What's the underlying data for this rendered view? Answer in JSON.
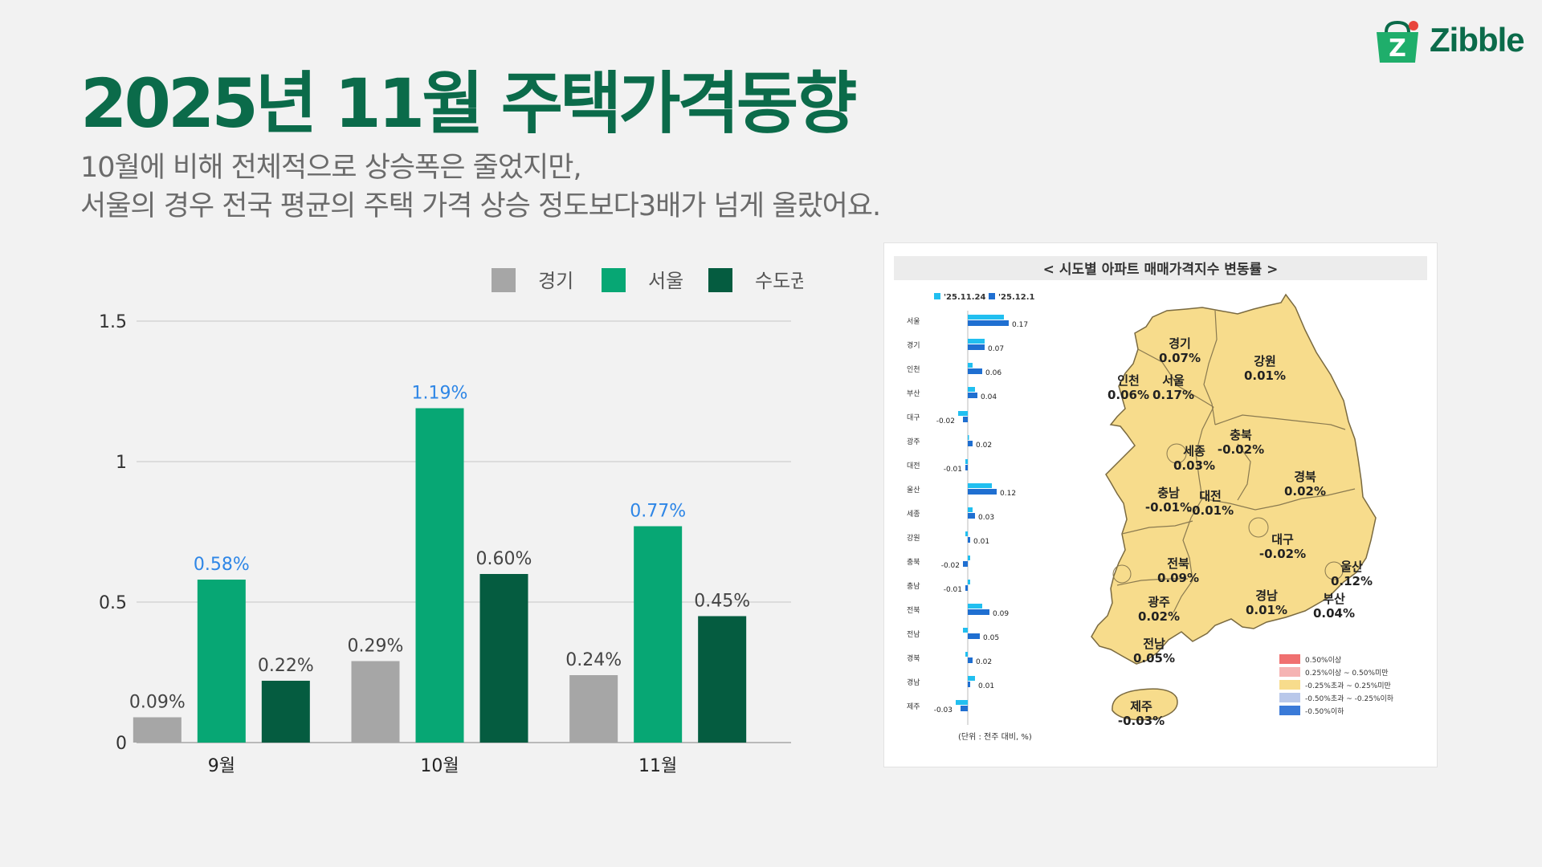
{
  "title": "2025년 11월 주택가격동향",
  "subtitle": {
    "line1": "10월에 비해 전체적으로 상승폭은 줄었지만,",
    "line2": "서울의 경우 전국 평균의 주택 가격 상승 정도보다3배가 넘게 올랐어요."
  },
  "brand": {
    "name": "Zibble",
    "logo_letter": "Z"
  },
  "colors": {
    "accent": "#0b6b4a",
    "gyeonggi": "#a6a6a6",
    "seoul": "#07a774",
    "capital": "#055c40",
    "highlight_label": "#2e86e6",
    "map_fill": "#f7dc8c",
    "bar_prev": "#21bff0",
    "bar_curr": "#1f6fd1"
  },
  "chart_data": {
    "type": "bar",
    "title": "",
    "xlabel": "",
    "ylabel": "",
    "ylim": [
      0,
      1.5
    ],
    "yticks": [
      "0",
      "0.5",
      "1",
      "1.5"
    ],
    "ytick_values": [
      0,
      0.5,
      1,
      1.5
    ],
    "categories": [
      "9월",
      "10월",
      "11월"
    ],
    "legend_position": "top",
    "series": [
      {
        "name": "경기",
        "values": [
          0.09,
          0.29,
          0.24
        ],
        "labels": [
          "0.09%",
          "0.29%",
          "0.24%"
        ],
        "color": "#a6a6a6"
      },
      {
        "name": "서울",
        "values": [
          0.58,
          1.19,
          0.77
        ],
        "labels": [
          "0.58%",
          "1.19%",
          "0.77%"
        ],
        "color": "#07a774"
      },
      {
        "name": "수도권",
        "values": [
          0.22,
          0.6,
          0.45
        ],
        "labels": [
          "0.22%",
          "0.60%",
          "0.45%"
        ],
        "color": "#055c40"
      }
    ]
  },
  "map_panel": {
    "title": "< 시도별 아파트 매매가격지수 변동률 >",
    "legend": [
      "'25.11.24",
      "'25.12.1"
    ],
    "unit": "(단위 : 전주 대비, %)",
    "bar_chart": {
      "type": "bar",
      "orientation": "horizontal",
      "rows": [
        {
          "region": "서울",
          "prev": 0.15,
          "curr": 0.17,
          "label": "0.17"
        },
        {
          "region": "경기",
          "prev": 0.07,
          "curr": 0.07,
          "label": "0.07"
        },
        {
          "region": "인천",
          "prev": 0.02,
          "curr": 0.06,
          "label": "0.06"
        },
        {
          "region": "부산",
          "prev": 0.03,
          "curr": 0.04,
          "label": "0.04"
        },
        {
          "region": "대구",
          "prev": -0.04,
          "curr": -0.02,
          "label": "-0.02"
        },
        {
          "region": "광주",
          "prev": 0.0,
          "curr": 0.02,
          "label": "0.02"
        },
        {
          "region": "대전",
          "prev": -0.01,
          "curr": -0.01,
          "label": "-0.01"
        },
        {
          "region": "울산",
          "prev": 0.1,
          "curr": 0.12,
          "label": "0.12"
        },
        {
          "region": "세종",
          "prev": 0.02,
          "curr": 0.03,
          "label": "0.03"
        },
        {
          "region": "강원",
          "prev": -0.01,
          "curr": 0.01,
          "label": "0.01"
        },
        {
          "region": "충북",
          "prev": 0.01,
          "curr": -0.02,
          "label": "-0.02"
        },
        {
          "region": "충남",
          "prev": 0.01,
          "curr": -0.01,
          "label": "-0.01"
        },
        {
          "region": "전북",
          "prev": 0.06,
          "curr": 0.09,
          "label": "0.09"
        },
        {
          "region": "전남",
          "prev": -0.02,
          "curr": 0.05,
          "label": "0.05"
        },
        {
          "region": "경북",
          "prev": -0.01,
          "curr": 0.02,
          "label": "0.02"
        },
        {
          "region": "경남",
          "prev": 0.03,
          "curr": 0.01,
          "label": "0.01"
        },
        {
          "region": "제주",
          "prev": -0.05,
          "curr": -0.03,
          "label": "-0.03"
        }
      ]
    },
    "map_labels": [
      {
        "name": "경기",
        "value": "0.07%"
      },
      {
        "name": "강원",
        "value": "0.01%"
      },
      {
        "name": "인천",
        "value": "0.06%"
      },
      {
        "name": "서울",
        "value": "0.17%"
      },
      {
        "name": "충북",
        "value": "-0.02%"
      },
      {
        "name": "세종",
        "value": "0.03%"
      },
      {
        "name": "경북",
        "value": "0.02%"
      },
      {
        "name": "충남",
        "value": "-0.01%"
      },
      {
        "name": "대전",
        "value": "-0.01%"
      },
      {
        "name": "대구",
        "value": "-0.02%"
      },
      {
        "name": "울산",
        "value": "0.12%"
      },
      {
        "name": "전북",
        "value": "0.09%"
      },
      {
        "name": "경남",
        "value": "0.01%"
      },
      {
        "name": "부산",
        "value": "0.04%"
      },
      {
        "name": "광주",
        "value": "0.02%"
      },
      {
        "name": "전남",
        "value": "0.05%"
      },
      {
        "name": "제주",
        "value": "-0.03%"
      }
    ],
    "map_legend": [
      {
        "label": "0.50%이상",
        "color": "#f07070"
      },
      {
        "label": "0.25%이상 ~ 0.50%미만",
        "color": "#f5b3b3"
      },
      {
        "label": "-0.25%초과 ~ 0.25%미만",
        "color": "#f7dc8c"
      },
      {
        "label": "-0.50%초과 ~ -0.25%이하",
        "color": "#b9c8ea"
      },
      {
        "label": "-0.50%이하",
        "color": "#3a7ad8"
      }
    ]
  }
}
